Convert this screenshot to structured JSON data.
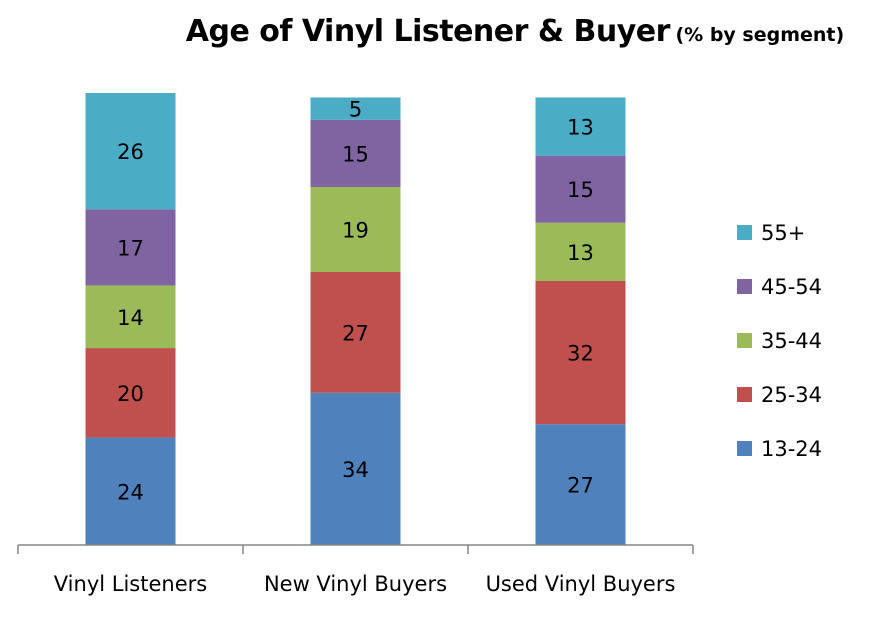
{
  "chart_data": {
    "type": "bar",
    "stacked": true,
    "title": "Age of Vinyl Listener & Buyer",
    "subtitle": "(% by segment)",
    "xlabel": "",
    "ylabel": "",
    "ylim": [
      0,
      101
    ],
    "grid": false,
    "legend_position": "right",
    "categories": [
      "Vinyl Listeners",
      "New Vinyl Buyers",
      "Used Vinyl Buyers"
    ],
    "series": [
      {
        "name": "13-24",
        "color": "#4F81BD",
        "values": [
          24,
          34,
          27
        ]
      },
      {
        "name": "25-34",
        "color": "#C0504D",
        "values": [
          20,
          27,
          32
        ]
      },
      {
        "name": "35-44",
        "color": "#9BBB59",
        "values": [
          14,
          19,
          13
        ]
      },
      {
        "name": "45-54",
        "color": "#8064A2",
        "values": [
          17,
          15,
          15
        ]
      },
      {
        "name": "55+",
        "color": "#4BACC6",
        "values": [
          26,
          5,
          13
        ]
      }
    ]
  }
}
